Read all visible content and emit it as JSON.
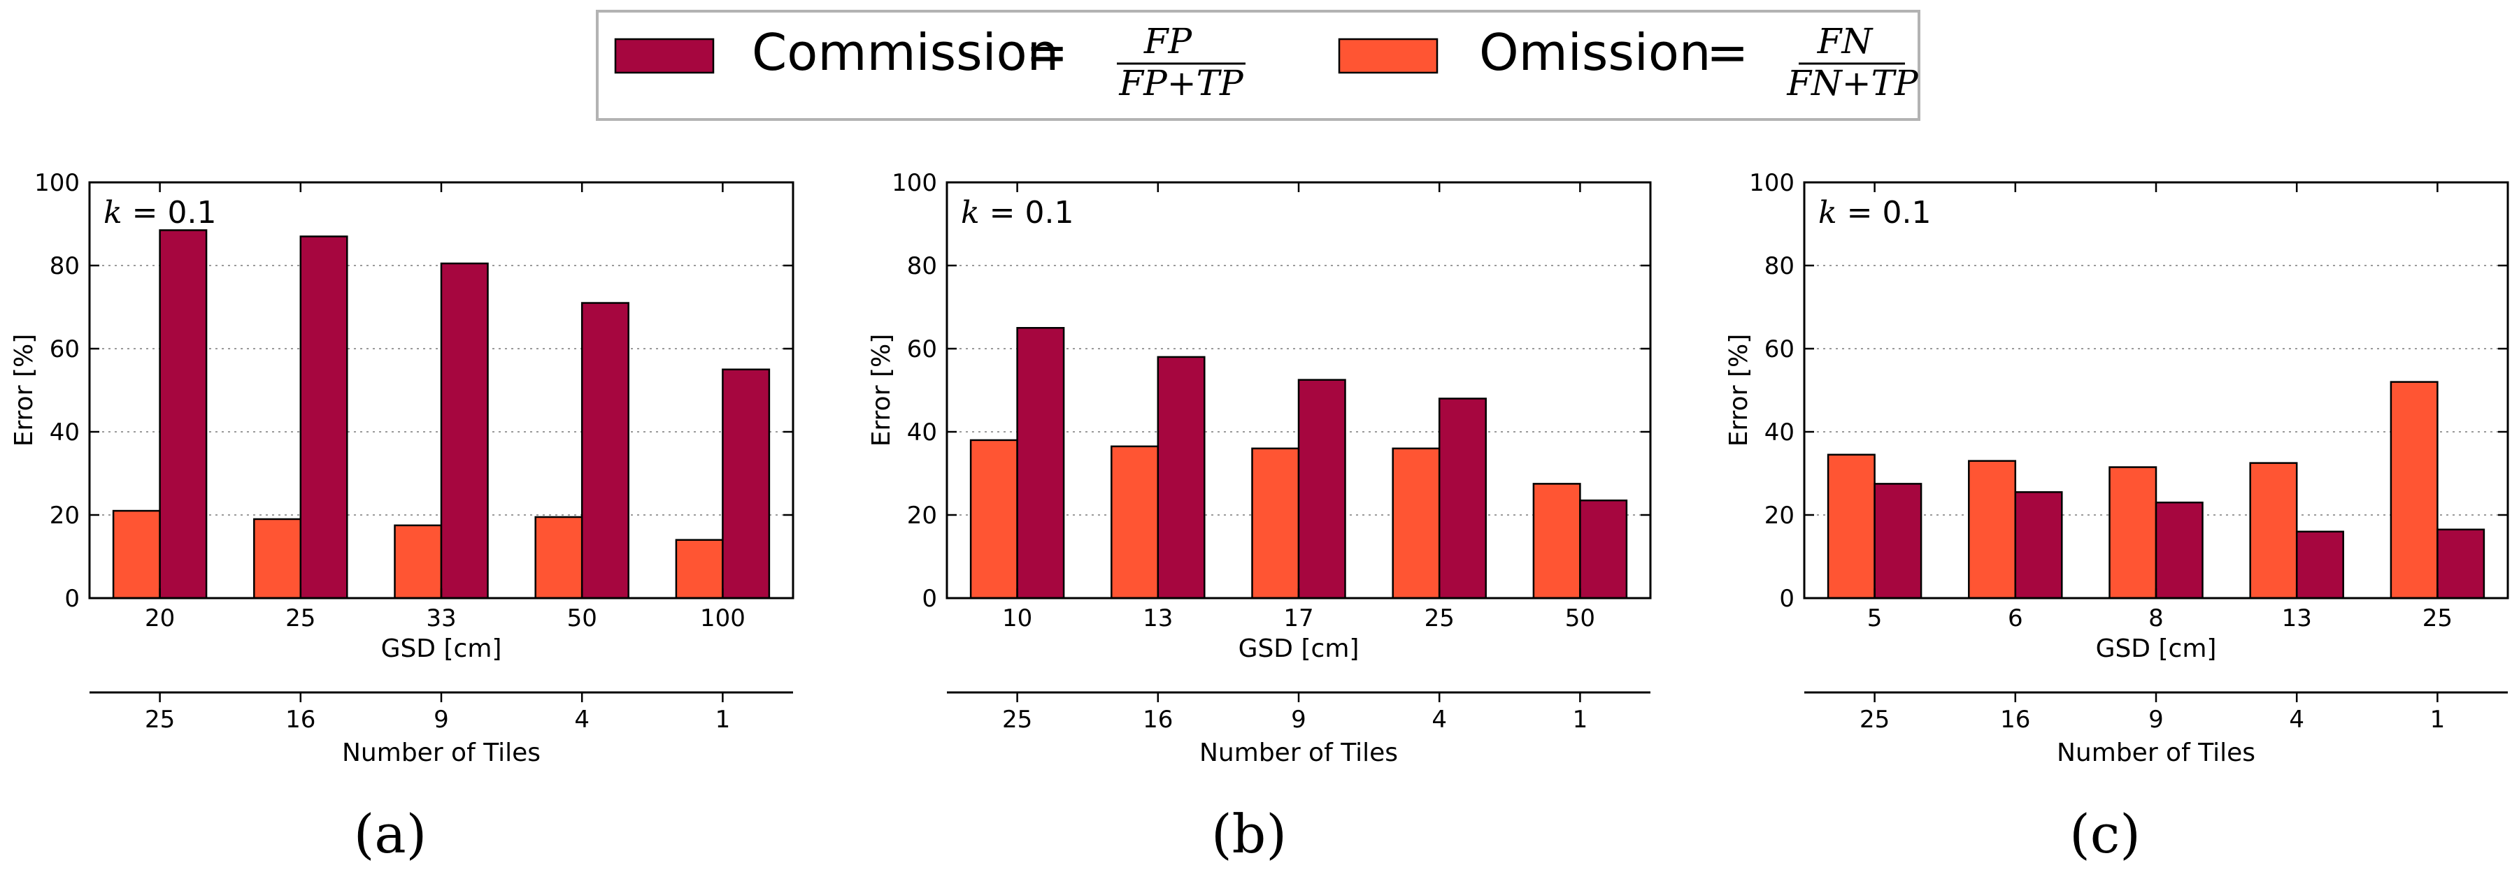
{
  "legend": {
    "commission": {
      "label": "Commission",
      "equals": "=",
      "numerator": "FP",
      "denominator": "FP+TP",
      "color": "#a6063f"
    },
    "omission": {
      "label": "Omission",
      "equals": "=",
      "numerator": "FN",
      "denominator": "FN+TP",
      "color": "#ff5533"
    }
  },
  "chart_data": [
    {
      "type": "bar",
      "panel_label": "(a)",
      "annotation": {
        "k_symbol": "k",
        "text": " = 0.1"
      },
      "ylabel": "Error [%]",
      "xlabel": "GSD [cm]",
      "xlabel2": "Number of Tiles",
      "ylim": [
        0,
        100
      ],
      "yticks": [
        0,
        20,
        40,
        60,
        80,
        100
      ],
      "grid": "horizontal dotted",
      "categories": [
        "20",
        "25",
        "33",
        "50",
        "100"
      ],
      "categories2": [
        "25",
        "16",
        "9",
        "4",
        "1"
      ],
      "series": [
        {
          "name": "Omission",
          "values": [
            21,
            19,
            17.5,
            19.5,
            14
          ]
        },
        {
          "name": "Commission",
          "values": [
            88.5,
            87,
            80.5,
            71,
            55
          ]
        }
      ]
    },
    {
      "type": "bar",
      "panel_label": "(b)",
      "annotation": {
        "k_symbol": "k",
        "text": " = 0.1"
      },
      "ylabel": "Error [%]",
      "xlabel": "GSD [cm]",
      "xlabel2": "Number of Tiles",
      "ylim": [
        0,
        100
      ],
      "yticks": [
        0,
        20,
        40,
        60,
        80,
        100
      ],
      "grid": "horizontal dotted",
      "categories": [
        "10",
        "13",
        "17",
        "25",
        "50"
      ],
      "categories2": [
        "25",
        "16",
        "9",
        "4",
        "1"
      ],
      "series": [
        {
          "name": "Omission",
          "values": [
            38,
            36.5,
            36,
            36,
            27.5
          ]
        },
        {
          "name": "Commission",
          "values": [
            65,
            58,
            52.5,
            48,
            23.5
          ]
        }
      ]
    },
    {
      "type": "bar",
      "panel_label": "(c)",
      "annotation": {
        "k_symbol": "k",
        "text": " = 0.1"
      },
      "ylabel": "Error [%]",
      "xlabel": "GSD [cm]",
      "xlabel2": "Number of Tiles",
      "ylim": [
        0,
        100
      ],
      "yticks": [
        0,
        20,
        40,
        60,
        80,
        100
      ],
      "grid": "horizontal dotted",
      "categories": [
        "5",
        "6",
        "8",
        "13",
        "25"
      ],
      "categories2": [
        "25",
        "16",
        "9",
        "4",
        "1"
      ],
      "series": [
        {
          "name": "Omission",
          "values": [
            34.5,
            33,
            31.5,
            32.5,
            52
          ]
        },
        {
          "name": "Commission",
          "values": [
            27.5,
            25.5,
            23,
            16,
            16.5
          ]
        }
      ]
    }
  ]
}
